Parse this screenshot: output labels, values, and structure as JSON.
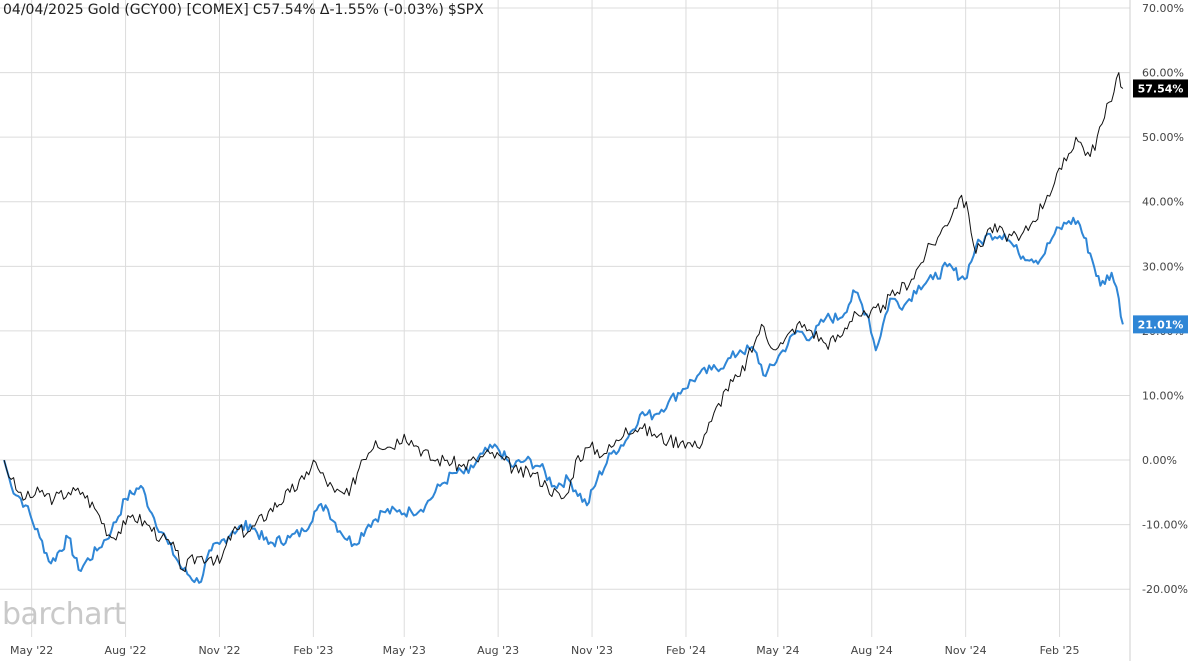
{
  "header": {
    "date": "04/04/2025",
    "instrument": "Gold (GCY00) [COMEX]",
    "close": "C57.54%",
    "change": "Δ-1.55% (-0.03%)",
    "compare": "$SPX"
  },
  "watermark": "barchart",
  "colors": {
    "gold_line": "#111111",
    "spx_line": "#2f86d6",
    "gold_tag": "#000000",
    "spx_tag": "#2f86d6",
    "grid": "#dcdcdc",
    "text": "#444444"
  },
  "chart_data": {
    "type": "line",
    "title": "",
    "xlabel": "",
    "ylabel": "",
    "ylim": [
      -25,
      70
    ],
    "y_ticks": [
      "70.00%",
      "60.00%",
      "50.00%",
      "40.00%",
      "30.00%",
      "20.00%",
      "10.00%",
      "0.00%",
      "-10.00%",
      "-20.00%"
    ],
    "y_tick_values": [
      70,
      60,
      50,
      40,
      30,
      20,
      10,
      0,
      -10,
      -20
    ],
    "x_ticks": [
      "May '22",
      "Aug '22",
      "Nov '22",
      "Feb '23",
      "May '23",
      "Aug '23",
      "Nov '23",
      "Feb '24",
      "May '24",
      "Aug '24",
      "Nov '24",
      "Feb '25"
    ],
    "x_tick_dates": [
      "2022-05-01",
      "2022-08-01",
      "2022-11-01",
      "2023-02-01",
      "2023-05-01",
      "2023-08-01",
      "2023-11-01",
      "2024-02-01",
      "2024-05-01",
      "2024-08-01",
      "2024-11-01",
      "2025-02-01"
    ],
    "x_range": [
      "2022-04-04",
      "2025-04-04"
    ],
    "grid": true,
    "last_value_tags": [
      {
        "label": "57.54%",
        "value": 57.54,
        "series": "Gold (GCY00)"
      },
      {
        "label": "21.01%",
        "value": 21.01,
        "series": "$SPX"
      }
    ],
    "series": [
      {
        "name": "Gold (GCY00)",
        "color": "#111111",
        "points": [
          [
            "2022-04-04",
            0
          ],
          [
            "2022-04-11",
            -3
          ],
          [
            "2022-04-18",
            -5
          ],
          [
            "2022-04-25",
            -6
          ],
          [
            "2022-05-09",
            -5
          ],
          [
            "2022-05-23",
            -6
          ],
          [
            "2022-06-06",
            -5
          ],
          [
            "2022-06-20",
            -5
          ],
          [
            "2022-07-04",
            -8
          ],
          [
            "2022-07-18",
            -12
          ],
          [
            "2022-08-01",
            -10
          ],
          [
            "2022-08-08",
            -8.5
          ],
          [
            "2022-08-22",
            -10
          ],
          [
            "2022-09-05",
            -12
          ],
          [
            "2022-09-19",
            -14
          ],
          [
            "2022-09-26",
            -17
          ],
          [
            "2022-10-10",
            -15
          ],
          [
            "2022-10-24",
            -15
          ],
          [
            "2022-11-01",
            -16
          ],
          [
            "2022-11-14",
            -11
          ],
          [
            "2022-12-01",
            -11
          ],
          [
            "2022-12-19",
            -8
          ],
          [
            "2023-01-09",
            -5
          ],
          [
            "2023-01-23",
            -3
          ],
          [
            "2023-02-01",
            0
          ],
          [
            "2023-02-08",
            -2
          ],
          [
            "2023-02-22",
            -5
          ],
          [
            "2023-03-08",
            -5.5
          ],
          [
            "2023-03-20",
            0
          ],
          [
            "2023-04-03",
            3
          ],
          [
            "2023-04-17",
            2
          ],
          [
            "2023-05-01",
            4
          ],
          [
            "2023-05-15",
            2
          ],
          [
            "2023-05-29",
            0
          ],
          [
            "2023-06-12",
            0
          ],
          [
            "2023-06-26",
            -1
          ],
          [
            "2023-07-10",
            0
          ],
          [
            "2023-07-24",
            1
          ],
          [
            "2023-08-07",
            0
          ],
          [
            "2023-08-21",
            -2
          ],
          [
            "2023-09-04",
            -2
          ],
          [
            "2023-09-18",
            -4
          ],
          [
            "2023-10-02",
            -6
          ],
          [
            "2023-10-09",
            -5
          ],
          [
            "2023-10-16",
            0
          ],
          [
            "2023-10-30",
            2
          ],
          [
            "2023-11-13",
            1
          ],
          [
            "2023-11-27",
            3
          ],
          [
            "2023-12-04",
            5
          ],
          [
            "2023-12-18",
            5
          ],
          [
            "2024-01-01",
            4
          ],
          [
            "2024-01-15",
            3
          ],
          [
            "2024-01-29",
            3
          ],
          [
            "2024-02-12",
            2
          ],
          [
            "2024-02-26",
            6
          ],
          [
            "2024-03-11",
            11
          ],
          [
            "2024-03-25",
            13
          ],
          [
            "2024-04-08",
            18
          ],
          [
            "2024-04-15",
            21
          ],
          [
            "2024-04-22",
            18
          ],
          [
            "2024-05-06",
            18
          ],
          [
            "2024-05-20",
            21
          ],
          [
            "2024-06-03",
            20
          ],
          [
            "2024-06-17",
            18
          ],
          [
            "2024-07-01",
            19
          ],
          [
            "2024-07-15",
            23
          ],
          [
            "2024-07-29",
            22
          ],
          [
            "2024-08-12",
            24
          ],
          [
            "2024-08-26",
            26
          ],
          [
            "2024-09-09",
            28
          ],
          [
            "2024-09-23",
            32
          ],
          [
            "2024-10-07",
            35
          ],
          [
            "2024-10-21",
            39
          ],
          [
            "2024-10-28",
            41
          ],
          [
            "2024-11-04",
            38
          ],
          [
            "2024-11-11",
            32
          ],
          [
            "2024-11-25",
            36
          ],
          [
            "2024-12-09",
            35
          ],
          [
            "2024-12-23",
            34
          ],
          [
            "2025-01-06",
            37
          ],
          [
            "2025-01-20",
            41
          ],
          [
            "2025-02-03",
            45
          ],
          [
            "2025-02-17",
            50
          ],
          [
            "2025-03-03",
            47
          ],
          [
            "2025-03-17",
            53
          ],
          [
            "2025-03-31",
            60
          ],
          [
            "2025-04-04",
            57.54
          ]
        ]
      },
      {
        "name": "$SPX",
        "color": "#2f86d6",
        "points": [
          [
            "2022-04-04",
            0
          ],
          [
            "2022-04-11",
            -4
          ],
          [
            "2022-04-25",
            -7
          ],
          [
            "2022-05-09",
            -12
          ],
          [
            "2022-05-20",
            -16
          ],
          [
            "2022-06-06",
            -12
          ],
          [
            "2022-06-16",
            -17
          ],
          [
            "2022-07-04",
            -14
          ],
          [
            "2022-07-18",
            -11
          ],
          [
            "2022-08-01",
            -6
          ],
          [
            "2022-08-16",
            -4
          ],
          [
            "2022-08-29",
            -9
          ],
          [
            "2022-09-12",
            -13
          ],
          [
            "2022-09-26",
            -17
          ],
          [
            "2022-10-12",
            -19
          ],
          [
            "2022-10-24",
            -14
          ],
          [
            "2022-11-01",
            -13
          ],
          [
            "2022-11-14",
            -11
          ],
          [
            "2022-12-01",
            -10
          ],
          [
            "2022-12-19",
            -13
          ],
          [
            "2023-01-09",
            -12
          ],
          [
            "2023-01-23",
            -11
          ],
          [
            "2023-02-02",
            -8
          ],
          [
            "2023-02-13",
            -7
          ],
          [
            "2023-02-27",
            -11
          ],
          [
            "2023-03-13",
            -13
          ],
          [
            "2023-03-27",
            -10
          ],
          [
            "2023-04-10",
            -8
          ],
          [
            "2023-04-24",
            -8
          ],
          [
            "2023-05-08",
            -8
          ],
          [
            "2023-05-22",
            -7
          ],
          [
            "2023-06-05",
            -4
          ],
          [
            "2023-06-19",
            -2
          ],
          [
            "2023-07-03",
            -2
          ],
          [
            "2023-07-17",
            1
          ],
          [
            "2023-07-31",
            2
          ],
          [
            "2023-08-14",
            -1
          ],
          [
            "2023-08-28",
            0
          ],
          [
            "2023-09-11",
            -1
          ],
          [
            "2023-09-25",
            -4
          ],
          [
            "2023-10-09",
            -3
          ],
          [
            "2023-10-27",
            -7
          ],
          [
            "2023-11-06",
            -3
          ],
          [
            "2023-11-20",
            1
          ],
          [
            "2023-12-04",
            3
          ],
          [
            "2023-12-18",
            7
          ],
          [
            "2024-01-01",
            7
          ],
          [
            "2024-01-15",
            9
          ],
          [
            "2024-01-29",
            11
          ],
          [
            "2024-02-12",
            13
          ],
          [
            "2024-02-26",
            14
          ],
          [
            "2024-03-11",
            15
          ],
          [
            "2024-03-25",
            17
          ],
          [
            "2024-04-08",
            17
          ],
          [
            "2024-04-19",
            13
          ],
          [
            "2024-05-06",
            17
          ],
          [
            "2024-05-20",
            20
          ],
          [
            "2024-06-03",
            19
          ],
          [
            "2024-06-17",
            22
          ],
          [
            "2024-07-01",
            22
          ],
          [
            "2024-07-16",
            26
          ],
          [
            "2024-07-29",
            22
          ],
          [
            "2024-08-05",
            17
          ],
          [
            "2024-08-19",
            25
          ],
          [
            "2024-09-02",
            24
          ],
          [
            "2024-09-16",
            27
          ],
          [
            "2024-09-30",
            28
          ],
          [
            "2024-10-14",
            30
          ],
          [
            "2024-10-31",
            28
          ],
          [
            "2024-11-11",
            33
          ],
          [
            "2024-11-25",
            35
          ],
          [
            "2024-12-09",
            35
          ],
          [
            "2024-12-23",
            32
          ],
          [
            "2025-01-13",
            31
          ],
          [
            "2025-01-27",
            35
          ],
          [
            "2025-02-10",
            37
          ],
          [
            "2025-02-19",
            37
          ],
          [
            "2025-03-03",
            32
          ],
          [
            "2025-03-13",
            27
          ],
          [
            "2025-03-24",
            29
          ],
          [
            "2025-03-31",
            25
          ],
          [
            "2025-04-04",
            21.01
          ]
        ]
      }
    ]
  }
}
